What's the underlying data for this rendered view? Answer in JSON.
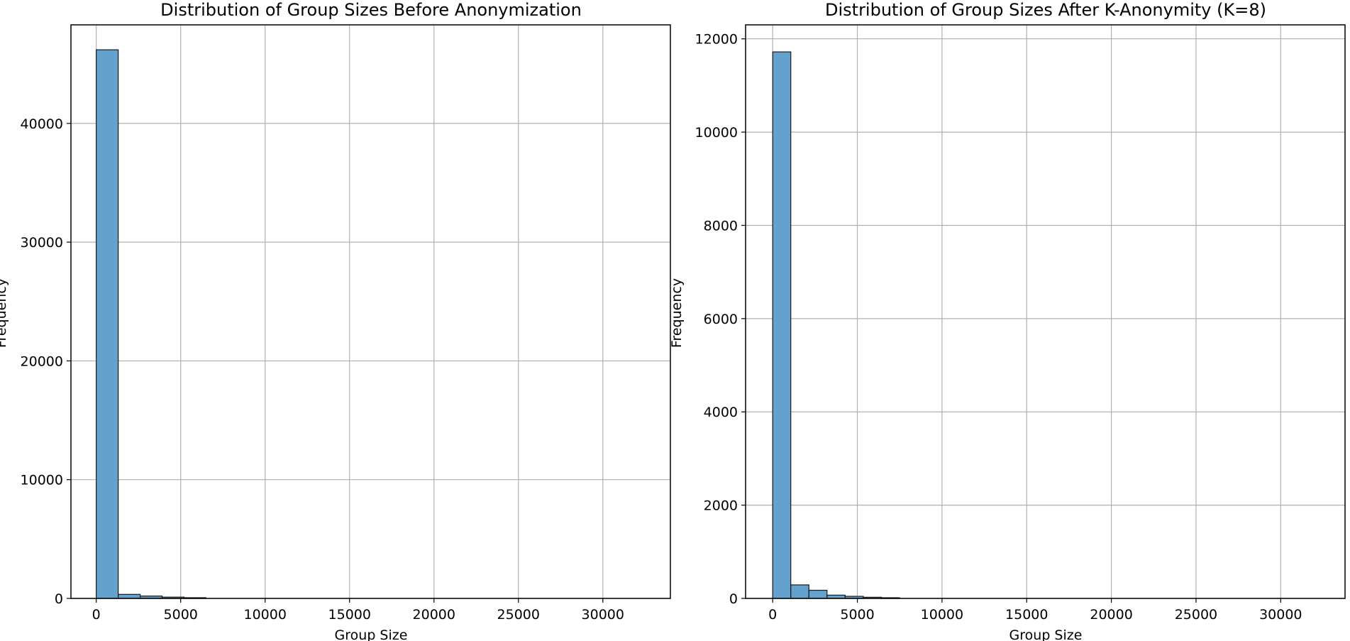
{
  "chart_data": [
    {
      "type": "bar",
      "title": "Distribution of Group Sizes Before Anonymization",
      "xlabel": "Group Size",
      "ylabel": "Frequency",
      "bin_width": 1300,
      "xlim": [
        -1500,
        34000
      ],
      "ylim": [
        0,
        48300
      ],
      "xticks": [
        0,
        5000,
        10000,
        15000,
        20000,
        25000,
        30000
      ],
      "yticks": [
        0,
        10000,
        20000,
        30000,
        40000
      ],
      "grid": true,
      "bar_color": "#65a1cd",
      "edge_color": "#1a1a1a",
      "x": [
        0,
        1300,
        2600,
        3900,
        5200
      ],
      "values": [
        46200,
        340,
        200,
        110,
        60
      ]
    },
    {
      "type": "bar",
      "title": "Distribution of Group Sizes After K-Anonymity (K=8)",
      "xlabel": "Group Size",
      "ylabel": "Frequency",
      "bin_width": 1070,
      "xlim": [
        -1600,
        33800
      ],
      "ylim": [
        0,
        12300
      ],
      "xticks": [
        0,
        5000,
        10000,
        15000,
        20000,
        25000,
        30000
      ],
      "yticks": [
        0,
        2000,
        4000,
        6000,
        8000,
        10000,
        12000
      ],
      "grid": true,
      "bar_color": "#65a1cd",
      "edge_color": "#1a1a1a",
      "x": [
        0,
        1070,
        2140,
        3210,
        4280,
        5350,
        6420
      ],
      "values": [
        11720,
        290,
        175,
        70,
        45,
        25,
        15
      ]
    }
  ]
}
